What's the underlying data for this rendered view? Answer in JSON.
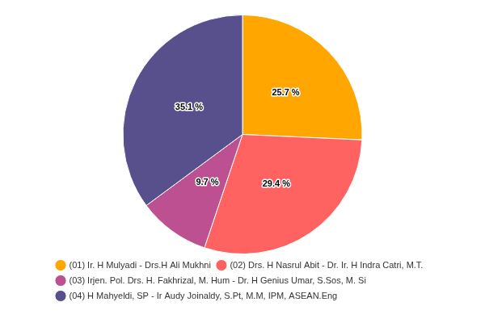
{
  "chart_data": {
    "type": "pie",
    "categories": [
      "(01) Ir. H Mulyadi - Drs.H Ali Mukhni",
      "(02) Drs. H Nasrul Abit - Dr. Ir. H Indra Catri, M.T.",
      "(03) Irjen. Pol. Drs. H. Fakhrizal, M. Hum - Dr. H Genius Umar, S.Sos, M. Si",
      "(04) H Mahyeldi, SP - Ir Audy Joinaldy, S.Pt, M.M, IPM, ASEAN.Eng"
    ],
    "values": [
      25.7,
      29.4,
      9.7,
      35.1
    ],
    "value_labels": [
      "25.7 %",
      "29.4 %",
      "9.7 %",
      "35.1 %"
    ],
    "colors": [
      "#ffa600",
      "#ff6361",
      "#bc5090",
      "#58508d"
    ],
    "data_labels": true,
    "legend": "bottom"
  }
}
